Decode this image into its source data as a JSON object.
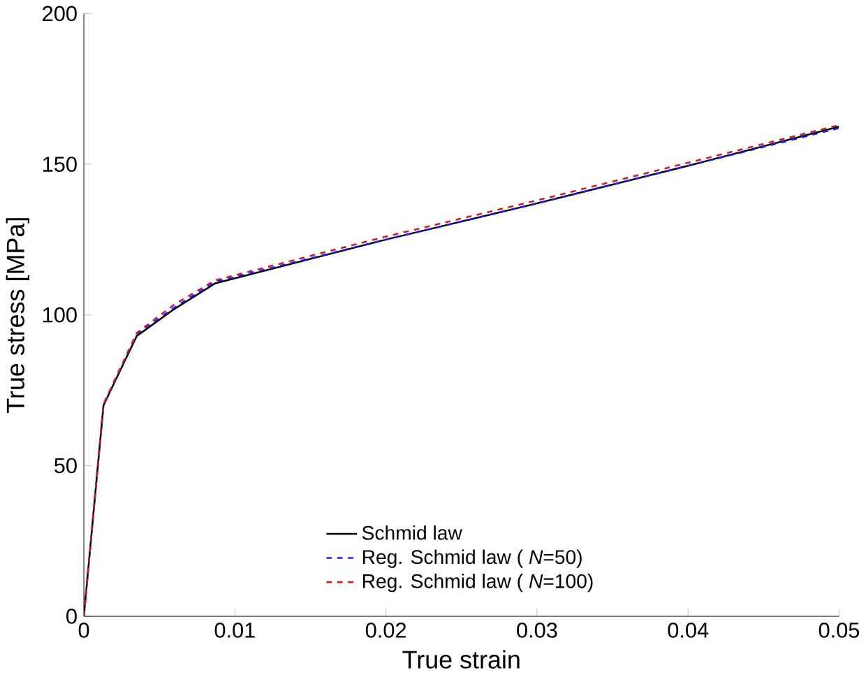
{
  "chart_data": {
    "type": "line",
    "xlabel": "True strain",
    "ylabel": "True stress [MPa]",
    "xlim": [
      0,
      0.05
    ],
    "ylim": [
      0,
      200
    ],
    "xticks": [
      0,
      0.01,
      0.02,
      0.03,
      0.04,
      0.05
    ],
    "yticks": [
      0,
      50,
      100,
      150,
      200
    ],
    "legend": "bottom",
    "grid": false,
    "series": [
      {
        "name": "Schmid law",
        "color": "#000000",
        "line_style": "solid",
        "x": [
          0,
          0.0013,
          0.0035,
          0.006,
          0.0087,
          0.02,
          0.03,
          0.04,
          0.05
        ],
        "values": [
          0,
          70,
          93,
          102,
          110.5,
          125,
          137,
          149.5,
          162.5
        ]
      },
      {
        "name": "Reg. Schmid law ( *N*=50)",
        "color": "#1a1aff",
        "line_style": "dashed",
        "x": [
          0,
          0.0013,
          0.0035,
          0.006,
          0.0087,
          0.02,
          0.03,
          0.04,
          0.05
        ],
        "values": [
          0,
          70,
          93.5,
          102.5,
          111,
          125,
          137,
          149.5,
          162
        ]
      },
      {
        "name": "Reg. Schmid law ( *N*=100)",
        "color": "#cc1f1f",
        "line_style": "dashed",
        "x": [
          0,
          0.0013,
          0.0035,
          0.006,
          0.0087,
          0.02,
          0.03,
          0.04,
          0.05
        ],
        "values": [
          0,
          70.5,
          94,
          103.5,
          111.5,
          126,
          138,
          150.5,
          163
        ]
      }
    ]
  }
}
